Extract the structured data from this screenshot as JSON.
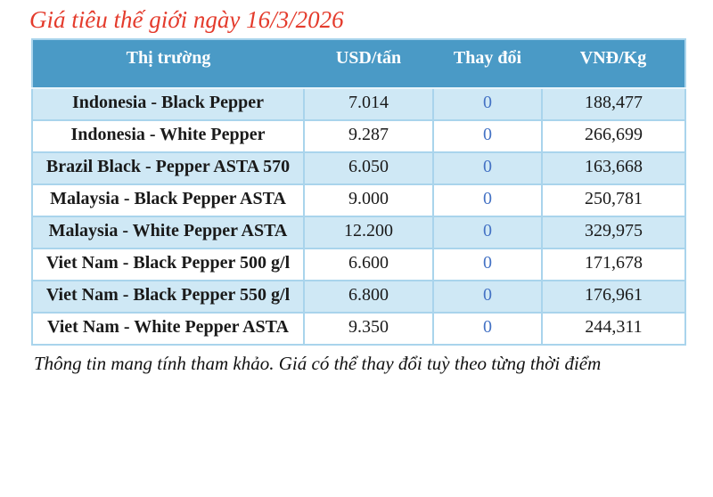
{
  "title": "Giá tiêu thế giới ngày 16/3/2026",
  "table": {
    "headers": [
      "Thị trường",
      "USD/tấn",
      "Thay đổi",
      "VNĐ/Kg"
    ],
    "rows": [
      {
        "market": "Indonesia - Black Pepper",
        "usd": "7.014",
        "change": "0",
        "vnd": "188,477"
      },
      {
        "market": "Indonesia - White Pepper",
        "usd": "9.287",
        "change": "0",
        "vnd": "266,699"
      },
      {
        "market": "Brazil Black - Pepper ASTA 570",
        "usd": "6.050",
        "change": "0",
        "vnd": "163,668"
      },
      {
        "market": "Malaysia - Black Pepper ASTA",
        "usd": "9.000",
        "change": "0",
        "vnd": "250,781"
      },
      {
        "market": "Malaysia - White Pepper ASTA",
        "usd": "12.200",
        "change": "0",
        "vnd": "329,975"
      },
      {
        "market": "Viet Nam - Black Pepper 500 g/l",
        "usd": "6.600",
        "change": "0",
        "vnd": "171,678"
      },
      {
        "market": "Viet Nam - Black Pepper 550 g/l",
        "usd": "6.800",
        "change": "0",
        "vnd": "176,961"
      },
      {
        "market": "Viet Nam - White Pepper ASTA",
        "usd": "9.350",
        "change": "0",
        "vnd": "244,311"
      }
    ]
  },
  "footer_note": "Thông tin mang tính tham khảo. Giá có thể thay đổi tuỳ theo từng thời điểm",
  "colors": {
    "title_red": "#e43b2c",
    "header_bg": "#4a9ac6",
    "header_text": "#ffffff",
    "row_alt_bg": "#cfe8f5",
    "row_bg": "#ffffff",
    "cell_border": "#a9d4ec",
    "change_text": "#4472c4",
    "body_text": "#1a1a1a"
  }
}
